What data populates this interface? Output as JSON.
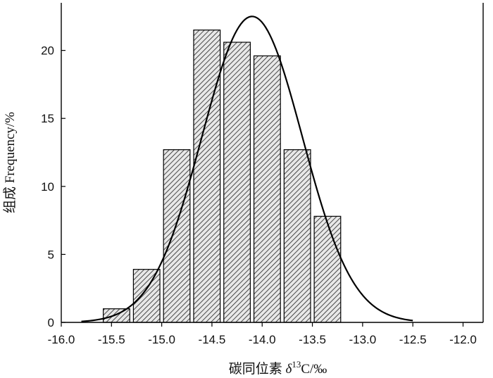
{
  "chart_data": {
    "type": "bar",
    "subtype": "histogram with normal fit curve",
    "title": "",
    "xlabel": "碳同位素 δ¹³C/‰",
    "xlabel_parts": {
      "prefix": "碳同位素 ",
      "delta": "δ",
      "sup": "13",
      "suffix": "C/‰"
    },
    "ylabel": "组成 Frequency/%",
    "xlim": [
      -16.0,
      -11.8
    ],
    "ylim": [
      0,
      23.5
    ],
    "x_ticks": [
      -16.0,
      -15.5,
      -15.0,
      -14.5,
      -14.0,
      -13.5,
      -13.0,
      -12.5,
      -12.0
    ],
    "x_tick_labels": [
      "-16.0",
      "-15.5",
      "-15.0",
      "-14.5",
      "-14.0",
      "-13.5",
      "-13.0",
      "-12.5",
      "-12.0"
    ],
    "y_ticks": [
      0,
      5,
      10,
      15,
      20
    ],
    "y_tick_labels": [
      "0",
      "5",
      "10",
      "15",
      "20"
    ],
    "bin_width": 0.275,
    "bins": [
      {
        "x0": -15.6,
        "x1": -15.3,
        "value": 1.0
      },
      {
        "x0": -15.3,
        "x1": -15.0,
        "value": 3.9
      },
      {
        "x0": -15.0,
        "x1": -14.7,
        "value": 12.7
      },
      {
        "x0": -14.7,
        "x1": -14.4,
        "value": 21.5
      },
      {
        "x0": -14.4,
        "x1": -14.1,
        "value": 20.6
      },
      {
        "x0": -14.1,
        "x1": -13.8,
        "value": 19.6
      },
      {
        "x0": -13.8,
        "x1": -13.5,
        "value": 12.7
      },
      {
        "x0": -13.5,
        "x1": -13.2,
        "value": 7.8
      }
    ],
    "fit_curve": {
      "type": "normal",
      "mean": -14.1,
      "sd": 0.5,
      "peak": 22.5,
      "x_range": [
        -15.8,
        -12.5
      ]
    },
    "bar_fill": "hatched",
    "grid": false,
    "legend": "none"
  }
}
